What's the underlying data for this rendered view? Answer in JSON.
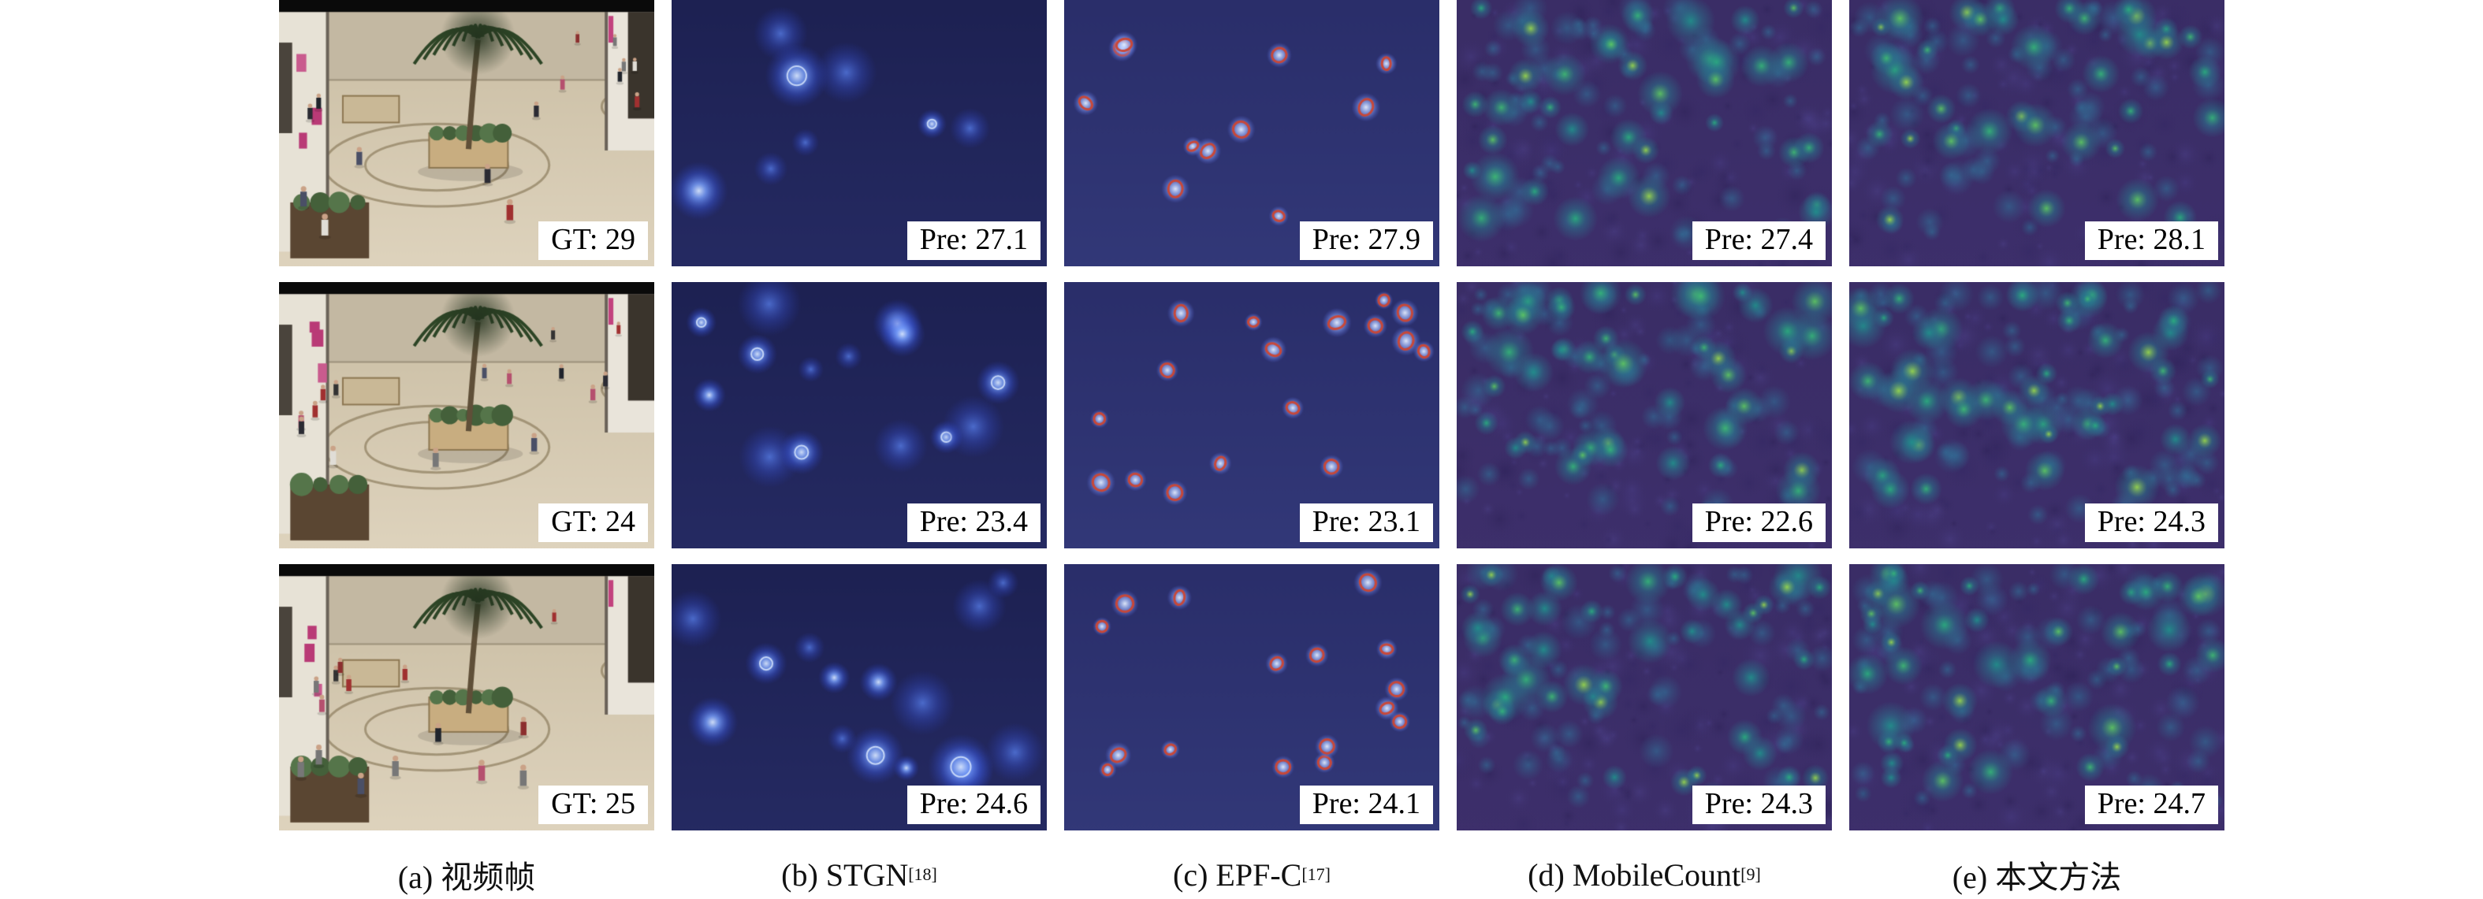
{
  "figure": {
    "description_visible_text_only": "",
    "columns": [
      {
        "key": "a",
        "type": "photo",
        "caption": "(a) 视频帧",
        "caption_sup": ""
      },
      {
        "key": "b",
        "type": "stgn",
        "caption": "(b) STGN",
        "caption_sup": "[18]"
      },
      {
        "key": "c",
        "type": "epfc",
        "caption": "(c) EPF-C",
        "caption_sup": "[17]"
      },
      {
        "key": "d",
        "type": "viridis",
        "caption": "(d) MobileCount",
        "caption_sup": "[9]"
      },
      {
        "key": "e",
        "type": "viridis",
        "caption": "(e) 本文方法",
        "caption_sup": ""
      }
    ],
    "rows": [
      {
        "gt": "GT: 29",
        "pre": [
          "Pre: 27.1",
          "Pre: 27.9",
          "Pre: 27.4",
          "Pre: 28.1"
        ]
      },
      {
        "gt": "GT: 24",
        "pre": [
          "Pre: 23.4",
          "Pre: 23.1",
          "Pre: 22.6",
          "Pre: 24.3"
        ]
      },
      {
        "gt": "GT: 25",
        "pre": [
          "Pre: 24.6",
          "Pre: 24.1",
          "Pre: 24.3",
          "Pre: 24.7"
        ]
      }
    ]
  },
  "chart_data": {
    "type": "table",
    "columns": [
      "GT",
      "STGN[18]",
      "EPF-C[17]",
      "MobileCount[9]",
      "本文方法"
    ],
    "rows": [
      [
        29,
        27.1,
        27.9,
        27.4,
        28.1
      ],
      [
        24,
        23.4,
        23.1,
        22.6,
        24.3
      ],
      [
        25,
        24.6,
        24.1,
        24.3,
        24.7
      ]
    ]
  },
  "colors": {
    "stgn_background": "#1d2152",
    "epfc_background": "#2a2e6a",
    "viridis_background": "#3a2d66",
    "ring_red": "#cd4631",
    "label_background": "#ffffff",
    "label_text": "#000000"
  }
}
